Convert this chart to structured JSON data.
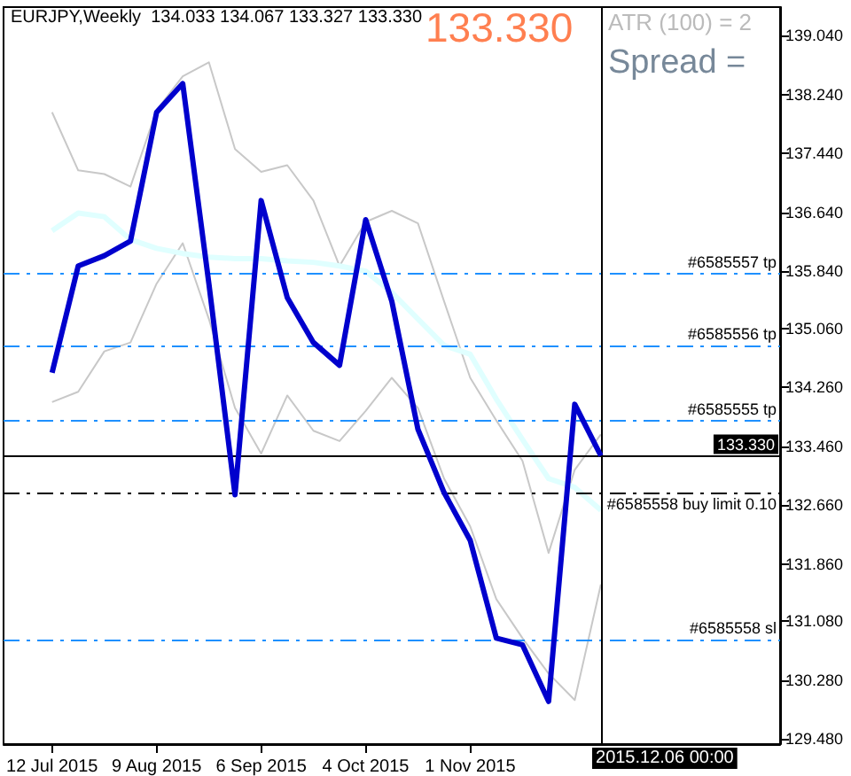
{
  "chart_data": {
    "type": "line",
    "title": "EURJPY,Weekly  134.033 134.067 133.327 133.330",
    "annotations": [
      "133.330",
      "ATR (100) = 2",
      "Spread ="
    ],
    "x": [
      "2015-07-12",
      "2015-07-19",
      "2015-07-26",
      "2015-08-02",
      "2015-08-09",
      "2015-08-16",
      "2015-08-23",
      "2015-08-30",
      "2015-09-06",
      "2015-09-13",
      "2015-09-20",
      "2015-09-27",
      "2015-10-04",
      "2015-10-11",
      "2015-10-18",
      "2015-10-25",
      "2015-11-01",
      "2015-11-08",
      "2015-11-15",
      "2015-11-22",
      "2015-11-29",
      "2015-12-06"
    ],
    "series": [
      {
        "color": "#c8c8c8",
        "values": [
          138.0,
          137.21,
          137.16,
          136.99,
          138.03,
          138.49,
          138.68,
          137.5,
          137.19,
          137.28,
          136.8,
          135.91,
          136.51,
          136.66,
          136.49,
          135.43,
          134.39,
          133.81,
          133.26,
          132.01,
          133.14,
          133.62
        ]
      },
      {
        "color": "#c8c8c8",
        "values": [
          134.06,
          134.2,
          134.75,
          134.87,
          135.67,
          136.22,
          135.19,
          133.98,
          133.36,
          134.15,
          133.67,
          133.53,
          133.94,
          134.39,
          133.98,
          133.02,
          132.37,
          131.38,
          130.85,
          130.37,
          130.01,
          131.58
        ]
      },
      {
        "color": "#e0ffff",
        "values": [
          136.39,
          136.63,
          136.58,
          136.27,
          136.15,
          136.08,
          136.03,
          136.01,
          136.01,
          135.98,
          135.96,
          135.91,
          135.84,
          135.55,
          135.19,
          134.83,
          134.71,
          134.1,
          133.55,
          133.02,
          132.9,
          132.59
        ]
      },
      {
        "color": "#0000cd",
        "values": [
          134.46,
          135.91,
          136.05,
          136.25,
          138.0,
          138.39,
          135.67,
          132.8,
          136.8,
          135.48,
          134.87,
          134.56,
          136.54,
          135.43,
          133.69,
          132.83,
          132.18,
          130.85,
          130.76,
          129.99,
          134.03,
          133.33
        ]
      }
    ],
    "xlim": [
      "2015-06-29",
      "2016-01-23"
    ],
    "xticks": [
      {
        "value": "2015-07-12",
        "label": "12 Jul 2015"
      },
      {
        "value": "2015-08-09",
        "label": "9 Aug 2015"
      },
      {
        "value": "2015-09-06",
        "label": "6 Sep 2015"
      },
      {
        "value": "2015-10-04",
        "label": "4 Oct 2015"
      },
      {
        "value": "2015-11-01",
        "label": "1 Nov 2015"
      }
    ],
    "ylim": [
      129.41,
      139.43
    ],
    "yticks": [
      {
        "value": 129.48,
        "label": "129.480"
      },
      {
        "value": 130.28,
        "label": "130.280"
      },
      {
        "value": 131.08,
        "label": "131.080"
      },
      {
        "value": 131.86,
        "label": "131.860"
      },
      {
        "value": 132.66,
        "label": "132.660"
      },
      {
        "value": 133.46,
        "label": "133.460"
      },
      {
        "value": 134.26,
        "label": "134.260"
      },
      {
        "value": 135.06,
        "label": "135.060"
      },
      {
        "value": 135.84,
        "label": "135.840"
      },
      {
        "value": 136.64,
        "label": "136.640"
      },
      {
        "value": 137.44,
        "label": "137.440"
      },
      {
        "value": 138.24,
        "label": "138.240"
      },
      {
        "value": 139.04,
        "label": "139.040"
      }
    ],
    "ref_lines": [
      {
        "axis": "y",
        "value": 135.81,
        "label": "#6585557 tp",
        "color": "#1e90ff",
        "line_style": "dashed"
      },
      {
        "axis": "y",
        "value": 134.83,
        "label": "#6585556 tp",
        "color": "#1e90ff",
        "line_style": "dashed"
      },
      {
        "axis": "y",
        "value": 133.81,
        "label": "#6585555 tp",
        "color": "#1e90ff",
        "line_style": "dashed"
      },
      {
        "axis": "y",
        "value": 132.83,
        "label": "#6585558 buy limit 0.10",
        "color": "#000000",
        "line_style": "dashed"
      },
      {
        "axis": "y",
        "value": 130.83,
        "label": "#6585558 sl",
        "color": "#1e90ff",
        "line_style": "dashed"
      },
      {
        "axis": "y",
        "value": 133.33,
        "label": "133.330",
        "color": "#000000",
        "line_style": "solid"
      },
      {
        "axis": "x",
        "value": "2015-12-06",
        "label": "2015.12.06 00:00",
        "color": "#000000",
        "line_style": "solid"
      }
    ],
    "grid": false,
    "marker": "none",
    "line_style": "solid"
  }
}
